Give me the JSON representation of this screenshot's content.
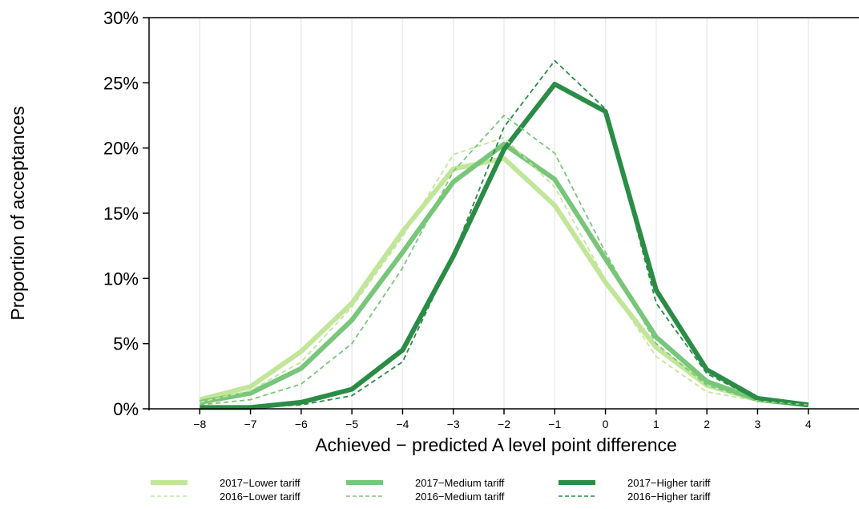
{
  "chart_data": {
    "type": "line",
    "title": "",
    "xlabel": "Achieved − predicted A level point difference",
    "ylabel": "Proportion of acceptances",
    "x": [
      -8,
      -7,
      -6,
      -5,
      -4,
      -3,
      -2,
      -1,
      0,
      1,
      2,
      3,
      4
    ],
    "x_tick_labels": [
      "−8",
      "−7",
      "−6",
      "−5",
      "−4",
      "−3",
      "−2",
      "−1",
      "0",
      "1",
      "2",
      "3",
      "4"
    ],
    "xlim": [
      -9,
      5
    ],
    "ylim": [
      0,
      30
    ],
    "y_ticks": [
      0,
      5,
      10,
      15,
      20,
      25,
      30
    ],
    "y_tick_labels": [
      "0%",
      "5%",
      "10%",
      "15%",
      "20%",
      "25%",
      "30%"
    ],
    "grid": "vertical",
    "legend_position": "bottom",
    "series": [
      {
        "name": "2017−Lower tariff",
        "color": "#c2e699",
        "style": "solid",
        "values": [
          0.7,
          1.7,
          4.4,
          8.1,
          13.6,
          18.4,
          19.2,
          15.6,
          9.7,
          4.7,
          1.8,
          0.7,
          0.3
        ]
      },
      {
        "name": "2016−Lower tariff",
        "color": "#c2e699",
        "style": "dashed",
        "values": [
          0.5,
          1.4,
          3.6,
          7.8,
          13.2,
          19.5,
          20.8,
          17.0,
          9.9,
          4.0,
          1.3,
          0.6,
          0.3
        ]
      },
      {
        "name": "2017−Medium tariff",
        "color": "#78c679",
        "style": "solid",
        "values": [
          0.5,
          1.2,
          3.1,
          6.8,
          12.0,
          17.4,
          20.3,
          17.6,
          11.5,
          5.5,
          2.1,
          0.7,
          0.3
        ]
      },
      {
        "name": "2016−Medium tariff",
        "color": "#78c679",
        "style": "dashed",
        "values": [
          0.3,
          0.7,
          1.9,
          5.0,
          10.8,
          18.2,
          22.5,
          19.6,
          12.0,
          5.0,
          1.8,
          0.6,
          0.3
        ]
      },
      {
        "name": "2017−Higher tariff",
        "color": "#2a8c46",
        "style": "solid",
        "values": [
          0.1,
          0.1,
          0.5,
          1.5,
          4.5,
          11.7,
          19.9,
          24.9,
          22.8,
          9.1,
          3.0,
          0.8,
          0.3
        ]
      },
      {
        "name": "2016−Higher tariff",
        "color": "#2a8c46",
        "style": "dashed",
        "values": [
          0.0,
          0.1,
          0.3,
          1.0,
          3.6,
          11.8,
          21.6,
          26.7,
          23.0,
          8.1,
          2.7,
          0.7,
          0.3
        ]
      }
    ]
  }
}
